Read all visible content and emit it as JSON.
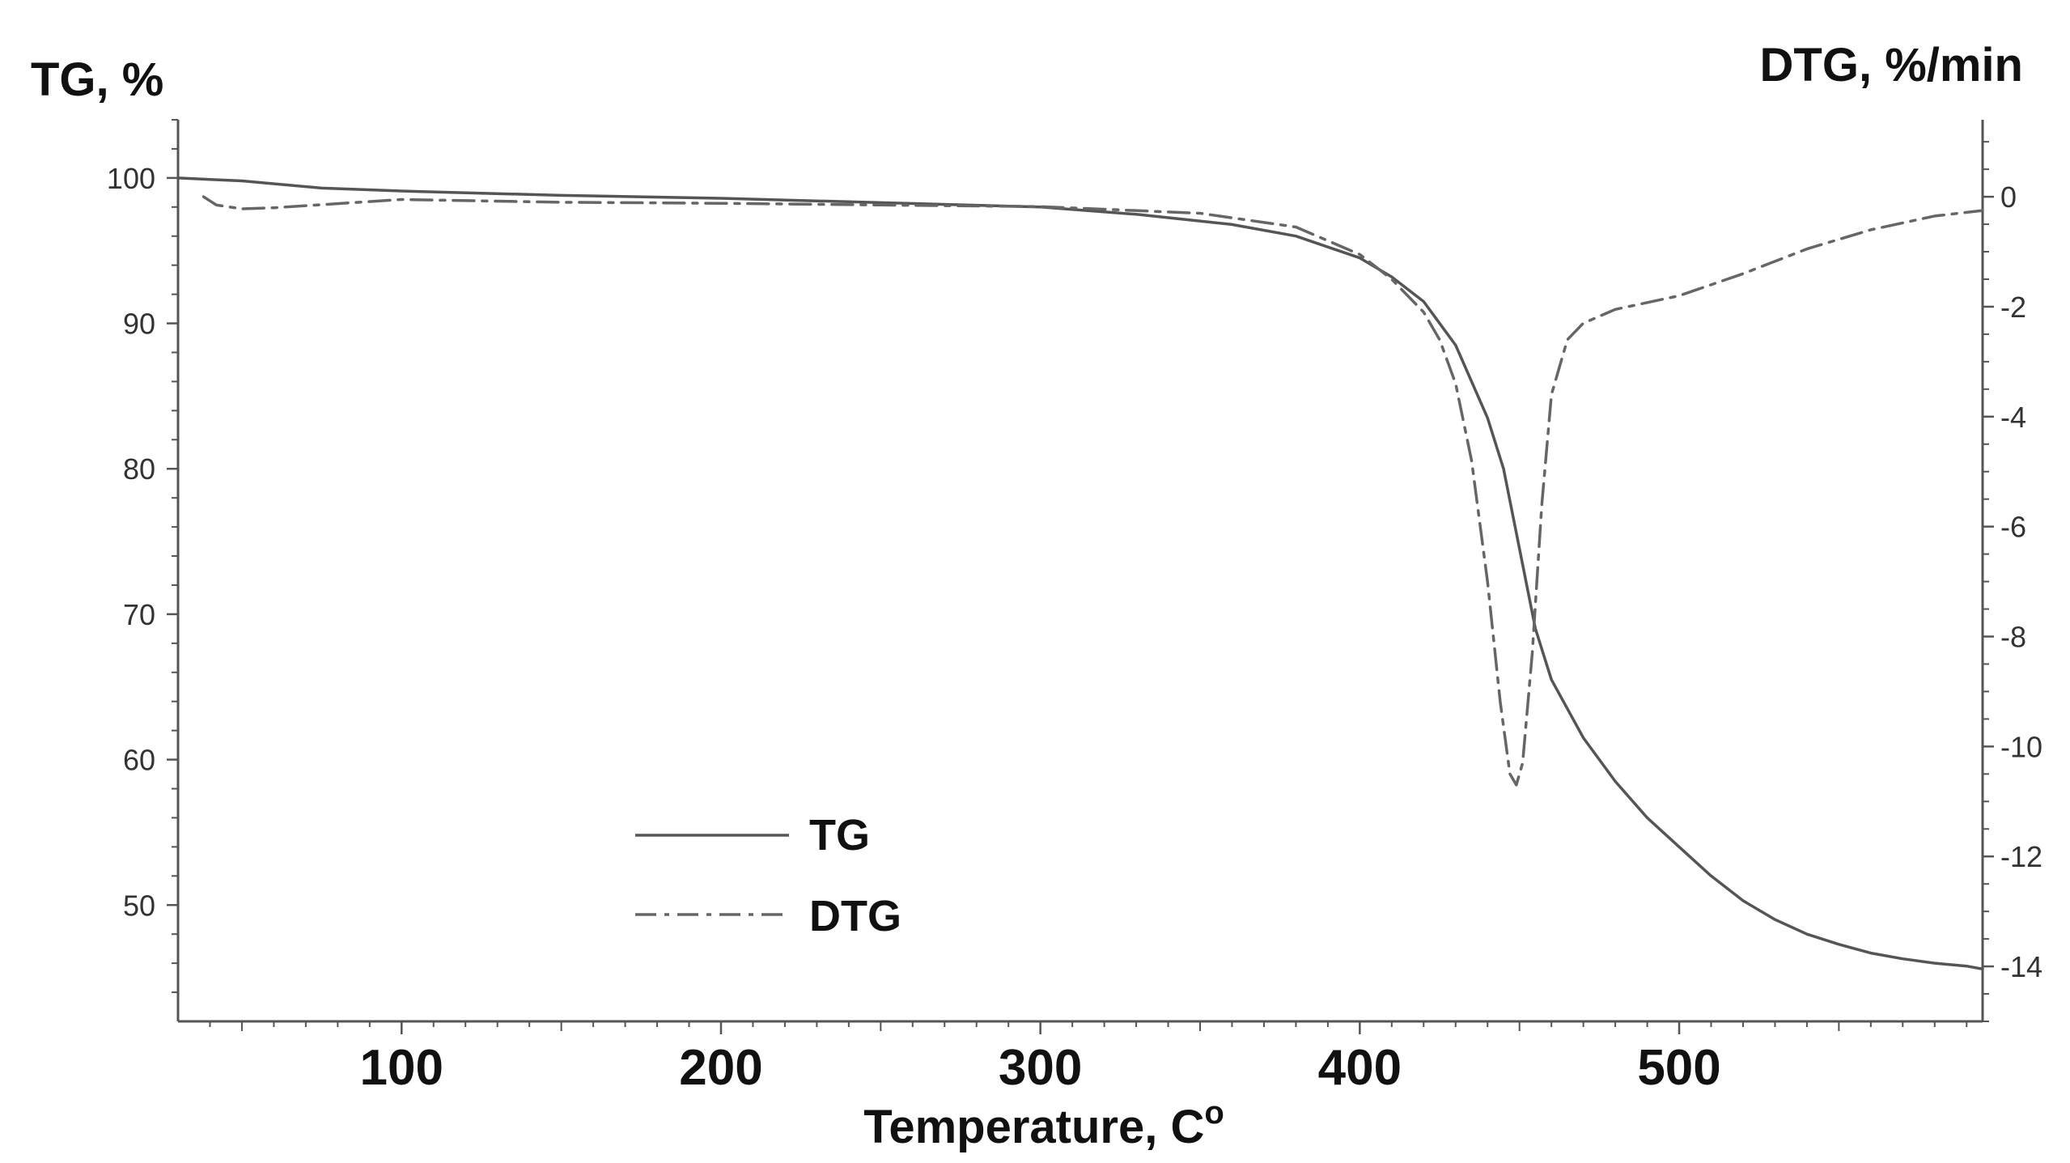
{
  "chart_data": {
    "type": "line",
    "title": "",
    "xlabel": "Temperature, C",
    "xlabel_superscript": "o",
    "ylabel_left": "TG, %",
    "ylabel_right": "DTG, %/min",
    "xlim": [
      30,
      595
    ],
    "ylim_left": [
      42,
      104
    ],
    "ylim_right": [
      -15,
      1.4
    ],
    "x_ticks": [
      100,
      200,
      300,
      400,
      500
    ],
    "y_left_ticks": [
      100,
      90,
      80,
      70,
      60,
      50
    ],
    "y_right_ticks": [
      0,
      -2,
      -4,
      -6,
      -8,
      -10,
      -12,
      -14
    ],
    "grid": false,
    "legend": {
      "position": "bottom-left",
      "entries": [
        "TG",
        "DTG"
      ]
    },
    "series": [
      {
        "name": "TG",
        "axis": "left",
        "style": "solid",
        "x": [
          30,
          50,
          75,
          100,
          150,
          200,
          250,
          300,
          330,
          360,
          380,
          400,
          410,
          420,
          430,
          440,
          445,
          450,
          455,
          460,
          470,
          480,
          490,
          500,
          510,
          520,
          530,
          540,
          550,
          560,
          570,
          580,
          590,
          595
        ],
        "y": [
          100,
          99.8,
          99.3,
          99.1,
          98.8,
          98.6,
          98.3,
          98.0,
          97.5,
          96.8,
          96.0,
          94.5,
          93.2,
          91.5,
          88.5,
          83.5,
          80.0,
          74.5,
          69.0,
          65.5,
          61.5,
          58.5,
          56.0,
          54.0,
          52.0,
          50.3,
          49.0,
          48.0,
          47.3,
          46.7,
          46.3,
          46.0,
          45.8,
          45.6
        ]
      },
      {
        "name": "DTG",
        "axis": "right",
        "style": "dash-dot",
        "x": [
          38,
          42,
          50,
          60,
          100,
          150,
          200,
          250,
          300,
          350,
          380,
          400,
          410,
          420,
          425,
          430,
          435,
          440,
          444,
          447,
          449,
          451,
          454,
          457,
          460,
          465,
          470,
          480,
          500,
          520,
          540,
          560,
          580,
          595
        ],
        "y": [
          0,
          -0.15,
          -0.22,
          -0.2,
          -0.05,
          -0.1,
          -0.12,
          -0.15,
          -0.18,
          -0.3,
          -0.55,
          -1.05,
          -1.5,
          -2.1,
          -2.6,
          -3.4,
          -4.8,
          -7.0,
          -9.2,
          -10.5,
          -10.7,
          -10.3,
          -8.3,
          -5.6,
          -3.6,
          -2.6,
          -2.3,
          -2.05,
          -1.8,
          -1.4,
          -0.95,
          -0.6,
          -0.35,
          -0.25
        ]
      }
    ]
  }
}
